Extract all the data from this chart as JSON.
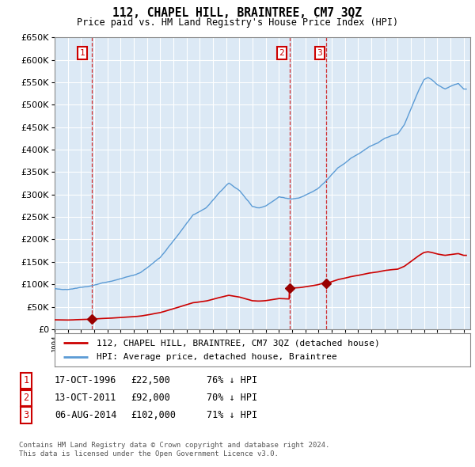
{
  "title": "112, CHAPEL HILL, BRAINTREE, CM7 3QZ",
  "subtitle": "Price paid vs. HM Land Registry's House Price Index (HPI)",
  "legend_label_red": "112, CHAPEL HILL, BRAINTREE, CM7 3QZ (detached house)",
  "legend_label_blue": "HPI: Average price, detached house, Braintree",
  "transactions": [
    {
      "label": "1",
      "date": "17-OCT-1996",
      "price": 22500,
      "year": 1996.8,
      "hpi_pct": "76% ↓ HPI"
    },
    {
      "label": "2",
      "date": "13-OCT-2011",
      "price": 92000,
      "year": 2011.8,
      "hpi_pct": "70% ↓ HPI"
    },
    {
      "label": "3",
      "date": "06-AUG-2014",
      "price": 102000,
      "year": 2014.6,
      "hpi_pct": "71% ↓ HPI"
    }
  ],
  "footer_line1": "Contains HM Land Registry data © Crown copyright and database right 2024.",
  "footer_line2": "This data is licensed under the Open Government Licence v3.0.",
  "ylim": [
    0,
    650000
  ],
  "xmin": 1994,
  "xmax": 2025.5,
  "plot_bg_color": "#dce9f5",
  "fig_bg_color": "#ffffff",
  "grid_color": "#ffffff",
  "hpi_line_color": "#5b9bd5",
  "price_color": "#cc0000",
  "marker_color": "#990000"
}
